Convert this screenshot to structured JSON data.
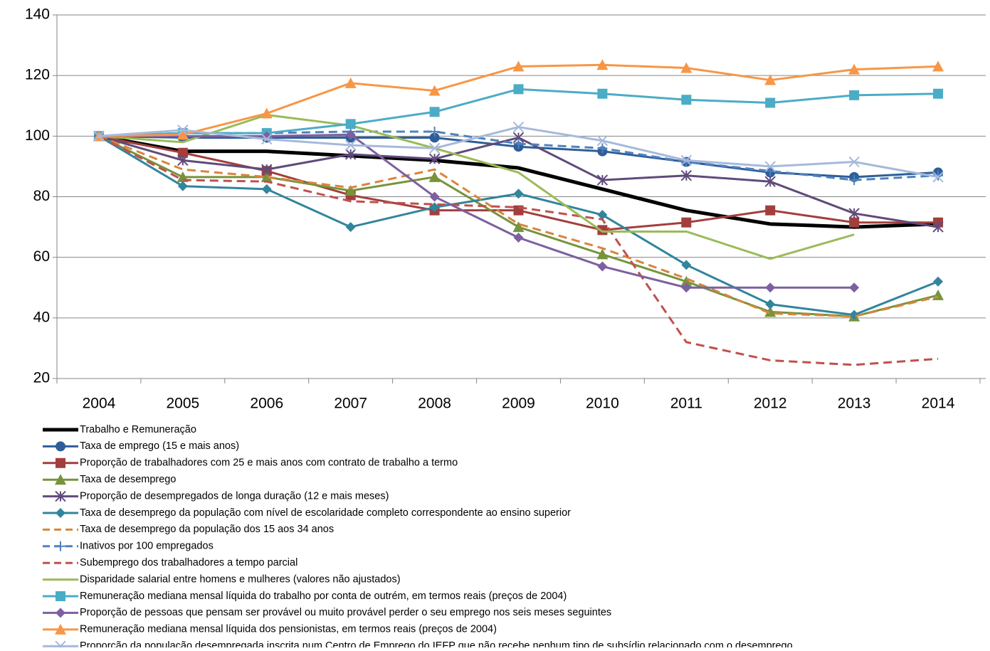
{
  "chart_data": {
    "type": "line",
    "categories": [
      "2004",
      "2005",
      "2006",
      "2007",
      "2008",
      "2009",
      "2010",
      "2011",
      "2012",
      "2013",
      "2014"
    ],
    "ylim": [
      20,
      140
    ],
    "yticks": [
      20,
      40,
      60,
      80,
      100,
      120,
      140
    ],
    "grid": true,
    "legend": "bottom",
    "series": [
      {
        "name": "Trabalho e Remuneração",
        "color": "#000000",
        "marker": "none",
        "dashed": false,
        "width": 5,
        "values": [
          100,
          95,
          95,
          93.5,
          92,
          89.5,
          82.5,
          75.5,
          71,
          70,
          71
        ]
      },
      {
        "name": "Taxa de emprego (15 e mais anos)",
        "color": "#2e5e9a",
        "marker": "circle",
        "dashed": false,
        "width": 3,
        "values": [
          100,
          99.5,
          99.5,
          99.5,
          99.5,
          96.5,
          95,
          91.5,
          88,
          86.5,
          88
        ]
      },
      {
        "name": "Proporção de trabalhadores com 25 e mais anos com contrato de trabalho a termo",
        "color": "#a23f3c",
        "marker": "square",
        "dashed": false,
        "width": 3,
        "values": [
          100,
          94.5,
          88.5,
          80.5,
          75.5,
          75.5,
          69,
          71.5,
          75.5,
          71.5,
          71.5
        ]
      },
      {
        "name": "Taxa de desemprego",
        "color": "#77933c",
        "marker": "triangle",
        "dashed": false,
        "width": 3,
        "values": [
          100,
          86.5,
          86.5,
          82,
          86.5,
          70,
          61,
          52,
          42,
          40.5,
          47.5
        ]
      },
      {
        "name": "Proporção de desempregados de longa duração (12 e mais meses)",
        "color": "#604a7b",
        "marker": "asterisk",
        "dashed": false,
        "width": 3,
        "values": [
          100,
          92,
          89,
          94,
          92.5,
          99.5,
          85.5,
          87,
          85,
          74.5,
          70
        ]
      },
      {
        "name": "Taxa de desemprego da população com nível de escolaridade completo correspondente ao ensino superior",
        "color": "#31859c",
        "marker": "diamond",
        "dashed": false,
        "width": 3,
        "values": [
          100,
          83.5,
          82.5,
          70,
          76.5,
          81,
          74,
          57.5,
          44.5,
          41,
          52
        ]
      },
      {
        "name": "Taxa de desemprego da população dos 15 aos 34 anos",
        "color": "#d9843c",
        "marker": "none",
        "dashed": true,
        "width": 3,
        "values": [
          100,
          89,
          86.5,
          83,
          89,
          71,
          63,
          53,
          41.5,
          40.5,
          47
        ]
      },
      {
        "name": "Inativos por 100 empregados",
        "color": "#4f81bd",
        "marker": "plus",
        "dashed": true,
        "width": 3,
        "values": [
          100,
          101,
          101,
          101.5,
          101.5,
          97.5,
          96,
          91.5,
          88.5,
          85.5,
          87
        ]
      },
      {
        "name": "Subemprego dos trabalhadores a tempo parcial",
        "color": "#c0504d",
        "marker": "none",
        "dashed": true,
        "width": 3,
        "values": [
          100,
          85.5,
          85,
          78.5,
          77.5,
          76.5,
          72.5,
          32,
          26,
          24.5,
          26.5
        ]
      },
      {
        "name": "Disparidade salarial entre homens e mulheres (valores não ajustados)",
        "color": "#9bbb59",
        "marker": "none",
        "dashed": false,
        "width": 3,
        "values": [
          100,
          98,
          107,
          103.5,
          96,
          88,
          68.5,
          68.5,
          59.5,
          67.5,
          null
        ]
      },
      {
        "name": "Remuneração mediana mensal líquida do trabalho por conta de outrém, em termos reais (preços de 2004)",
        "color": "#4bacc6",
        "marker": "square",
        "dashed": false,
        "width": 3,
        "values": [
          100,
          101,
          101,
          104,
          108,
          115.5,
          114,
          112,
          111,
          113.5,
          114
        ]
      },
      {
        "name": "Proporção de pessoas que pensam ser provável ou muito provável perder o seu emprego nos seis meses seguintes",
        "color": "#7d60a0",
        "marker": "diamond",
        "dashed": false,
        "width": 3,
        "values": [
          100,
          100,
          100,
          100.5,
          80,
          66.5,
          57,
          50,
          50,
          50,
          null
        ]
      },
      {
        "name": "Remuneração mediana mensal líquida dos pensionistas, em termos reais (preços de 2004)",
        "color": "#f79646",
        "marker": "triangle",
        "dashed": false,
        "width": 3,
        "values": [
          100,
          100.5,
          107.5,
          117.5,
          115,
          123,
          123.5,
          122.5,
          118.5,
          122,
          123
        ]
      },
      {
        "name": "Proporção da população desempregada inscrita num Centro de Emprego do IEFP que não recebe nenhum tipo de subsídio relacionado com o desemprego",
        "color": "#a6b9dc",
        "marker": "x",
        "dashed": false,
        "width": 3,
        "values": [
          100,
          102,
          99,
          97,
          96,
          103,
          98.5,
          92,
          90,
          91.5,
          86.5
        ]
      }
    ]
  }
}
